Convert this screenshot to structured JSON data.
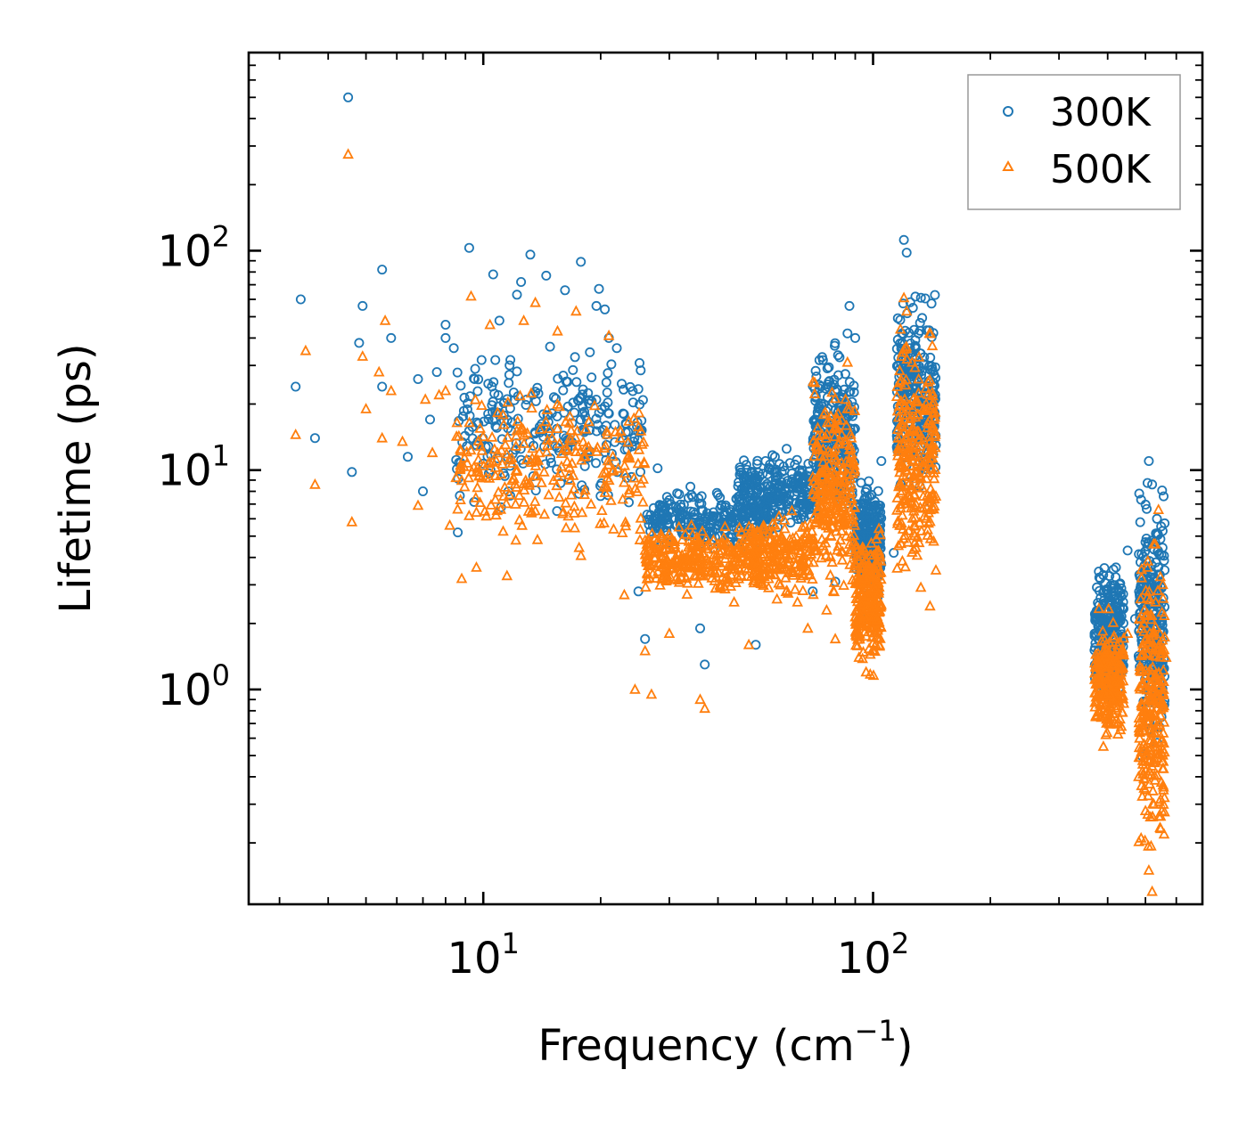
{
  "chart_data": {
    "type": "scatter",
    "title": "",
    "xlabel": "Frequency (cm",
    "xlabel_sup": "−1",
    "xlabel_close": ")",
    "ylabel": "Lifetime (ps)",
    "xscale": "log",
    "yscale": "log",
    "xlim": [
      2.5,
      700
    ],
    "ylim": [
      0.105,
      800
    ],
    "xticks": [
      {
        "value": 10,
        "base": "10",
        "exp": "1"
      },
      {
        "value": 100,
        "base": "10",
        "exp": "2"
      }
    ],
    "yticks": [
      {
        "value": 1,
        "base": "10",
        "exp": "0"
      },
      {
        "value": 10,
        "base": "10",
        "exp": "1"
      },
      {
        "value": 100,
        "base": "10",
        "exp": "2"
      }
    ],
    "legend": {
      "position": "top-right"
    },
    "series": [
      {
        "name": "300K",
        "marker": "circle",
        "color": "#1f77b4",
        "points": [
          [
            3.3,
            24
          ],
          [
            3.4,
            60
          ],
          [
            3.7,
            14
          ],
          [
            4.5,
            500
          ],
          [
            4.6,
            9.8
          ],
          [
            4.8,
            38
          ],
          [
            4.9,
            56
          ],
          [
            5.5,
            82
          ],
          [
            5.5,
            24
          ],
          [
            5.8,
            40
          ],
          [
            6.4,
            11.5
          ],
          [
            6.8,
            26
          ],
          [
            7.0,
            8
          ],
          [
            7.3,
            17
          ],
          [
            7.6,
            28
          ],
          [
            8.0,
            46
          ],
          [
            8.0,
            40
          ],
          [
            8.4,
            36
          ],
          [
            8.6,
            5.2
          ],
          [
            9.2,
            103
          ],
          [
            9.5,
            26
          ],
          [
            10.6,
            78
          ],
          [
            11.0,
            48
          ],
          [
            12.2,
            63
          ],
          [
            12.5,
            72
          ],
          [
            13.2,
            96
          ],
          [
            14.5,
            77
          ],
          [
            16.2,
            66
          ],
          [
            17.8,
            89
          ],
          [
            19.5,
            56
          ],
          [
            19.8,
            67
          ],
          [
            20.5,
            54
          ],
          [
            21.0,
            40
          ],
          [
            22.0,
            36
          ],
          [
            25.0,
            2.8
          ],
          [
            26.0,
            1.7
          ],
          [
            28.0,
            10.2
          ],
          [
            30.0,
            7.3
          ],
          [
            32.0,
            6.1
          ],
          [
            34.0,
            8.4
          ],
          [
            36.0,
            1.9
          ],
          [
            37.0,
            1.3
          ],
          [
            40.0,
            7.7
          ],
          [
            43.0,
            6.6
          ],
          [
            46.0,
            8.2
          ],
          [
            50.0,
            1.6
          ],
          [
            53.0,
            11
          ],
          [
            56.0,
            11.5
          ],
          [
            60.0,
            12.5
          ],
          [
            65.0,
            7.3
          ],
          [
            70.0,
            2.8
          ],
          [
            73.0,
            19
          ],
          [
            76.0,
            13
          ],
          [
            80.0,
            3.1
          ],
          [
            83.0,
            10
          ],
          [
            86.0,
            42
          ],
          [
            87.0,
            56
          ],
          [
            90.0,
            40
          ],
          [
            94.0,
            2.1
          ],
          [
            98.0,
            3.5
          ],
          [
            102.0,
            5.3
          ],
          [
            105.0,
            11
          ],
          [
            113.0,
            4.2
          ],
          [
            120.0,
            112
          ],
          [
            122.0,
            98
          ],
          [
            123.0,
            22
          ],
          [
            128.0,
            24
          ],
          [
            135.0,
            24
          ],
          [
            143.0,
            25
          ],
          [
            145.0,
            13
          ],
          [
            380.0,
            1.7
          ],
          [
            390.0,
            1.5
          ],
          [
            420.0,
            3.6
          ],
          [
            450.0,
            4.3
          ],
          [
            470.0,
            2.1
          ],
          [
            490.0,
            3.2
          ],
          [
            510.0,
            11
          ],
          [
            520.0,
            8.6
          ],
          [
            535.0,
            6
          ],
          [
            550.0,
            4.1
          ],
          [
            560.0,
            3.5
          ]
        ],
        "bands": [
          {
            "x": [
              8.5,
              26
            ],
            "y": [
              5.5,
              45
            ]
          },
          {
            "x": [
              26,
              55
            ],
            "y": [
              4.2,
              8.5
            ]
          },
          {
            "x": [
              45,
              70
            ],
            "y": [
              4.8,
              12.5
            ]
          },
          {
            "x": [
              70,
              90
            ],
            "y": [
              4.5,
              44
            ]
          },
          {
            "x": [
              90,
              105
            ],
            "y": [
              2.2,
              11
            ]
          },
          {
            "x": [
              115,
              145
            ],
            "y": [
              6,
              80
            ]
          },
          {
            "x": [
              370,
              440
            ],
            "y": [
              0.8,
              4.5
            ]
          },
          {
            "x": [
              480,
              560
            ],
            "y": [
              0.35,
              11
            ]
          }
        ]
      },
      {
        "name": "500K",
        "marker": "triangle",
        "color": "#ff7f0e",
        "points": [
          [
            3.3,
            14.5
          ],
          [
            3.5,
            35
          ],
          [
            3.7,
            8.6
          ],
          [
            4.5,
            275
          ],
          [
            4.6,
            5.8
          ],
          [
            4.9,
            33
          ],
          [
            5.0,
            19
          ],
          [
            5.4,
            28
          ],
          [
            5.5,
            14
          ],
          [
            5.6,
            48
          ],
          [
            5.8,
            23
          ],
          [
            6.2,
            13.5
          ],
          [
            6.8,
            6.9
          ],
          [
            7.1,
            21
          ],
          [
            7.4,
            12
          ],
          [
            7.7,
            22
          ],
          [
            8.0,
            23
          ],
          [
            8.2,
            5.6
          ],
          [
            8.8,
            3.2
          ],
          [
            9.3,
            62
          ],
          [
            9.6,
            3.6
          ],
          [
            10.4,
            46
          ],
          [
            11.5,
            3.3
          ],
          [
            12.7,
            48
          ],
          [
            13.6,
            58
          ],
          [
            15.5,
            43
          ],
          [
            17.3,
            53
          ],
          [
            21.0,
            41
          ],
          [
            23.0,
            2.7
          ],
          [
            24.5,
            1.0
          ],
          [
            26.0,
            1.5
          ],
          [
            27.0,
            0.95
          ],
          [
            30.0,
            1.8
          ],
          [
            33.0,
            5.1
          ],
          [
            36.0,
            0.9
          ],
          [
            37.0,
            0.82
          ],
          [
            40.0,
            4.6
          ],
          [
            44.0,
            2.5
          ],
          [
            48.0,
            1.6
          ],
          [
            50.0,
            3.6
          ],
          [
            56.0,
            5.6
          ],
          [
            60.0,
            4.5
          ],
          [
            64.0,
            2.5
          ],
          [
            68.0,
            1.9
          ],
          [
            72.0,
            4.3
          ],
          [
            76.0,
            2.3
          ],
          [
            80.0,
            1.7
          ],
          [
            85.0,
            21
          ],
          [
            86.0,
            31
          ],
          [
            88.0,
            14
          ],
          [
            92.0,
            1.4
          ],
          [
            96.0,
            1.2
          ],
          [
            100.0,
            1.5
          ],
          [
            104.0,
            3.4
          ],
          [
            120.0,
            61
          ],
          [
            122.0,
            53
          ],
          [
            126.0,
            31
          ],
          [
            130.0,
            15
          ],
          [
            140.0,
            2.4
          ],
          [
            145.0,
            3.5
          ],
          [
            380.0,
            0.8
          ],
          [
            390.0,
            0.55
          ],
          [
            410.0,
            1.3
          ],
          [
            450.0,
            1.8
          ],
          [
            480.0,
            0.4
          ],
          [
            500.0,
            0.28
          ],
          [
            510.0,
            0.15
          ],
          [
            520.0,
            0.12
          ],
          [
            530.0,
            4.6
          ],
          [
            540.0,
            6.6
          ],
          [
            555.0,
            2.6
          ],
          [
            565.0,
            1.4
          ]
        ],
        "bands": [
          {
            "x": [
              8.5,
              26
            ],
            "y": [
              3.5,
              30
            ]
          },
          {
            "x": [
              26,
              45
            ],
            "y": [
              2.5,
              6
            ]
          },
          {
            "x": [
              45,
              70
            ],
            "y": [
              2.4,
              7
            ]
          },
          {
            "x": [
              70,
              90
            ],
            "y": [
              2.2,
              30
            ]
          },
          {
            "x": [
              90,
              105
            ],
            "y": [
              1.1,
              6
            ]
          },
          {
            "x": [
              115,
              145
            ],
            "y": [
              2.2,
              58
            ]
          },
          {
            "x": [
              370,
              440
            ],
            "y": [
              0.5,
              2.4
            ]
          },
          {
            "x": [
              480,
              560
            ],
            "y": [
              0.12,
              6.6
            ]
          }
        ]
      }
    ]
  }
}
